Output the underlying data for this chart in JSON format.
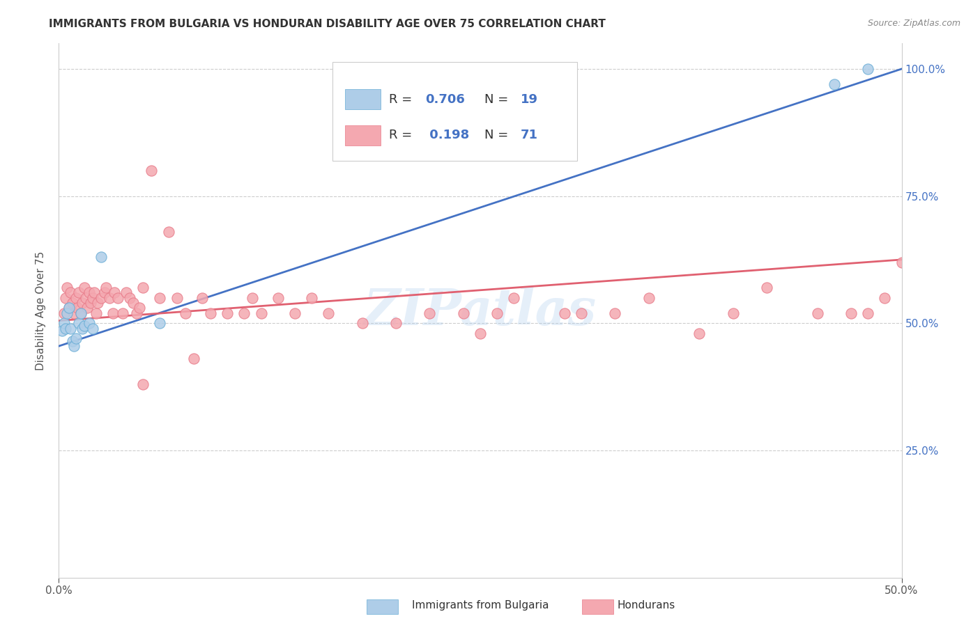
{
  "title": "IMMIGRANTS FROM BULGARIA VS HONDURAN DISABILITY AGE OVER 75 CORRELATION CHART",
  "source": "Source: ZipAtlas.com",
  "ylabel": "Disability Age Over 75",
  "legend_label_blue": "Immigrants from Bulgaria",
  "legend_label_pink": "Hondurans",
  "blue_scatter_color": "#aecde8",
  "pink_scatter_color": "#f4a8b0",
  "blue_edge_color": "#6aaed6",
  "pink_edge_color": "#e87c8a",
  "blue_line_color": "#4472c4",
  "pink_line_color": "#e06070",
  "watermark": "ZIPatlas",
  "xlim": [
    0.0,
    0.5
  ],
  "ylim": [
    0.0,
    1.05
  ],
  "right_ylim": [
    0.0,
    1.05
  ],
  "yticks": [
    0.25,
    0.5,
    0.75,
    1.0
  ],
  "xticks": [
    0.0,
    0.5
  ],
  "xtick_labels": [
    "0.0%",
    "50.0%"
  ],
  "ytick_right_labels": [
    "25.0%",
    "50.0%",
    "75.0%",
    "100.0%"
  ],
  "blue_points_x": [
    0.002,
    0.003,
    0.004,
    0.005,
    0.006,
    0.007,
    0.008,
    0.009,
    0.01,
    0.012,
    0.013,
    0.014,
    0.015,
    0.018,
    0.02,
    0.025,
    0.06,
    0.46,
    0.48
  ],
  "blue_points_y": [
    0.485,
    0.5,
    0.49,
    0.52,
    0.53,
    0.49,
    0.465,
    0.455,
    0.47,
    0.5,
    0.52,
    0.49,
    0.495,
    0.5,
    0.49,
    0.63,
    0.5,
    0.97,
    1.0
  ],
  "pink_points_x": [
    0.003,
    0.004,
    0.005,
    0.006,
    0.007,
    0.008,
    0.009,
    0.01,
    0.011,
    0.012,
    0.013,
    0.014,
    0.015,
    0.016,
    0.017,
    0.018,
    0.019,
    0.02,
    0.021,
    0.022,
    0.023,
    0.025,
    0.027,
    0.028,
    0.03,
    0.032,
    0.033,
    0.035,
    0.038,
    0.04,
    0.042,
    0.044,
    0.046,
    0.048,
    0.05,
    0.055,
    0.06,
    0.065,
    0.07,
    0.075,
    0.085,
    0.09,
    0.1,
    0.11,
    0.115,
    0.12,
    0.13,
    0.14,
    0.15,
    0.16,
    0.18,
    0.2,
    0.22,
    0.24,
    0.26,
    0.27,
    0.3,
    0.31,
    0.33,
    0.35,
    0.38,
    0.4,
    0.42,
    0.45,
    0.47,
    0.48,
    0.49,
    0.5,
    0.25,
    0.08,
    0.05
  ],
  "pink_points_y": [
    0.52,
    0.55,
    0.57,
    0.53,
    0.56,
    0.54,
    0.52,
    0.55,
    0.53,
    0.56,
    0.52,
    0.54,
    0.57,
    0.55,
    0.53,
    0.56,
    0.54,
    0.55,
    0.56,
    0.52,
    0.54,
    0.55,
    0.56,
    0.57,
    0.55,
    0.52,
    0.56,
    0.55,
    0.52,
    0.56,
    0.55,
    0.54,
    0.52,
    0.53,
    0.57,
    0.8,
    0.55,
    0.68,
    0.55,
    0.52,
    0.55,
    0.52,
    0.52,
    0.52,
    0.55,
    0.52,
    0.55,
    0.52,
    0.55,
    0.52,
    0.5,
    0.5,
    0.52,
    0.52,
    0.52,
    0.55,
    0.52,
    0.52,
    0.52,
    0.55,
    0.48,
    0.52,
    0.57,
    0.52,
    0.52,
    0.52,
    0.55,
    0.62,
    0.48,
    0.43,
    0.38
  ],
  "blue_line_x": [
    0.0,
    0.5
  ],
  "blue_line_y": [
    0.455,
    1.0
  ],
  "pink_line_x": [
    0.0,
    0.5
  ],
  "pink_line_y": [
    0.505,
    0.625
  ]
}
